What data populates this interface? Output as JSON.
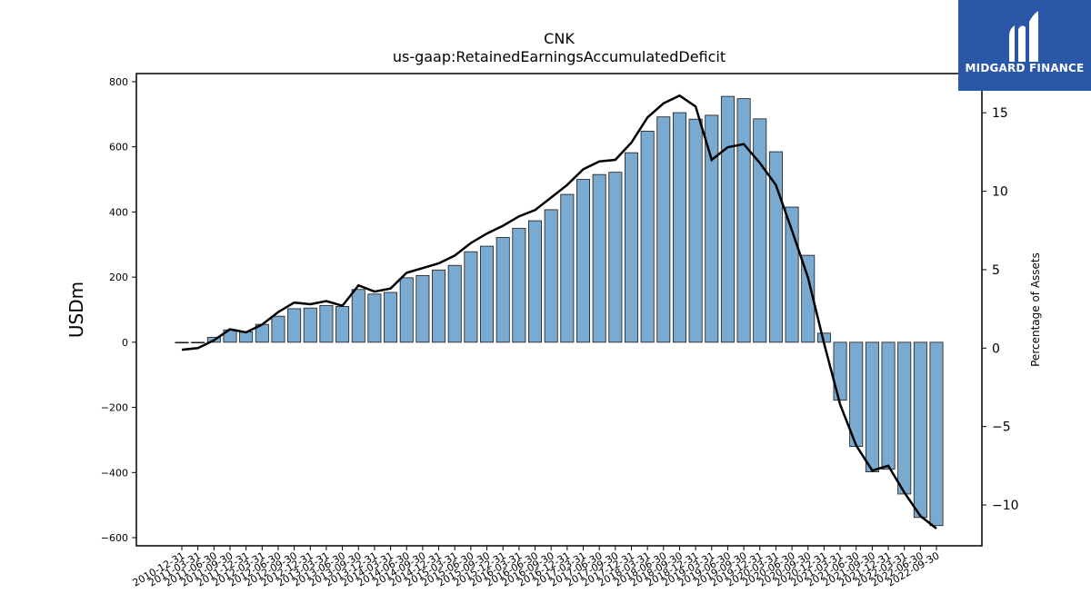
{
  "brand": {
    "name": "MIDGARD FINANCE",
    "logo_icon": "midgard-logo-icon",
    "background": "#2a57a8"
  },
  "chart_data": {
    "type": "bar",
    "title": "CNK",
    "subtitle": "us-gaap:RetainedEarningsAccumulatedDeficit",
    "ylabel": "USDm",
    "y2label": "Percentage of Assets",
    "ylim": [
      -625,
      825
    ],
    "y2lim": [
      -12.6,
      17.5
    ],
    "yticks": [
      -600,
      -400,
      -200,
      0,
      200,
      400,
      600,
      800
    ],
    "y2ticks": [
      -10,
      -5,
      0,
      5,
      10,
      15
    ],
    "bar_color": "#7aaad0",
    "line_color": "#000000",
    "grid": false,
    "categories": [
      "2010-12-31",
      "2011-03-31",
      "2011-06-30",
      "2011-09-30",
      "2011-12-31",
      "2012-03-31",
      "2012-06-30",
      "2012-09-30",
      "2012-12-31",
      "2013-03-31",
      "2013-06-30",
      "2013-09-30",
      "2013-12-31",
      "2014-03-31",
      "2014-06-30",
      "2014-09-30",
      "2014-12-31",
      "2015-03-31",
      "2015-06-30",
      "2015-09-30",
      "2015-12-31",
      "2016-03-31",
      "2016-06-30",
      "2016-09-30",
      "2016-12-31",
      "2017-03-31",
      "2017-06-30",
      "2017-09-30",
      "2017-12-31",
      "2018-03-31",
      "2018-06-30",
      "2018-09-30",
      "2018-12-31",
      "2019-03-31",
      "2019-06-30",
      "2019-09-30",
      "2019-12-31",
      "2020-03-31",
      "2020-06-30",
      "2020-09-30",
      "2020-12-31",
      "2021-03-31",
      "2021-06-30",
      "2021-09-30",
      "2021-12-31",
      "2022-03-31",
      "2022-06-30",
      "2022-09-30"
    ],
    "series": [
      {
        "values": [
          -2,
          -1,
          15,
          38,
          32,
          55,
          80,
          103,
          105,
          113,
          110,
          162,
          148,
          153,
          198,
          205,
          222,
          236,
          278,
          295,
          322,
          350,
          373,
          407,
          454,
          500,
          515,
          522,
          582,
          648,
          692,
          705,
          685,
          697,
          755,
          748,
          686,
          585,
          415,
          267,
          28,
          -178,
          -320,
          -398,
          -390,
          -466,
          -538,
          -563
        ]
      },
      {
        "axis": "right",
        "values": [
          -0.1,
          0.0,
          0.5,
          1.2,
          1.0,
          1.5,
          2.3,
          2.9,
          2.8,
          3.0,
          2.7,
          4.0,
          3.6,
          3.8,
          4.8,
          5.1,
          5.4,
          5.9,
          6.7,
          7.3,
          7.8,
          8.4,
          8.8,
          9.6,
          10.4,
          11.4,
          11.9,
          12.0,
          13.1,
          14.7,
          15.6,
          16.1,
          15.4,
          12.0,
          12.8,
          13.0,
          11.8,
          10.4,
          7.5,
          4.5,
          0.3,
          -3.6,
          -6.2,
          -7.8,
          -7.5,
          -9.2,
          -10.7,
          -11.5
        ]
      }
    ]
  }
}
